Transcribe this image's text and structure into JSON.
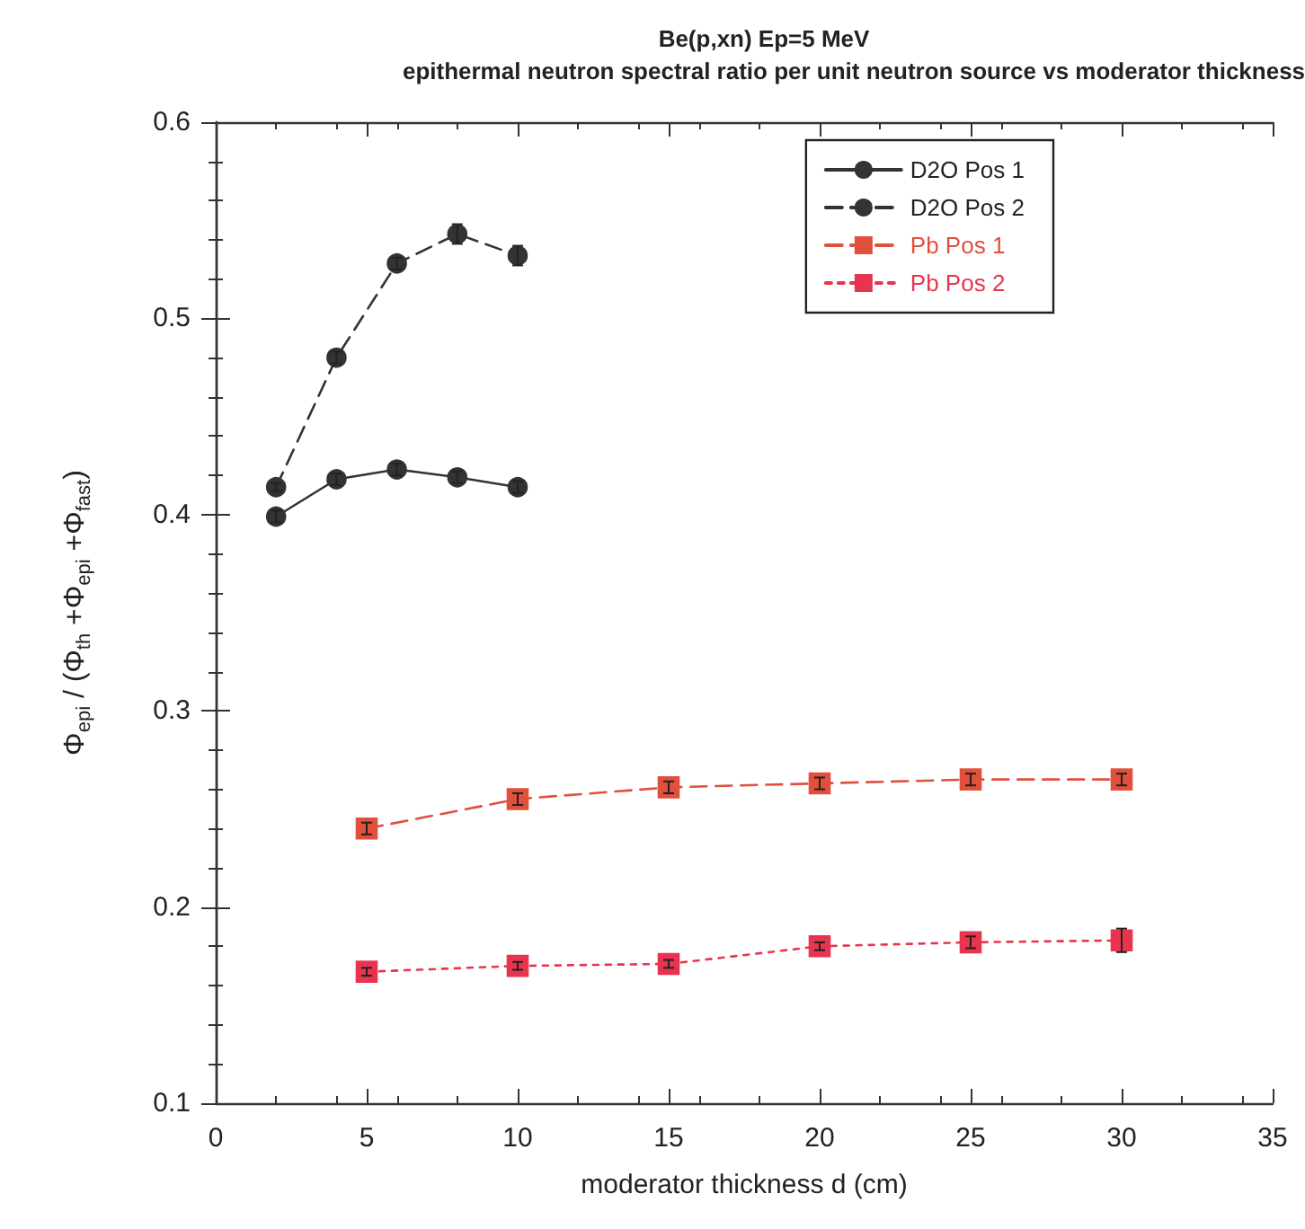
{
  "chart_data": {
    "type": "line",
    "title": "Be(p,xn) Ep=5 MeV",
    "subtitle": "epithermal neutron spectral ratio per unit neutron source vs moderator thickness",
    "xlabel": "moderator thickness d (cm)",
    "ylabel": "Φ$_{epi}$ / (Φ$_{th}$ +Φ$_{epi}$ +Φ$_{fast}$)",
    "xlim": [
      0,
      35
    ],
    "xticks": [
      0,
      5,
      10,
      15,
      20,
      25,
      30,
      35
    ],
    "ylim": [
      0.1,
      0.6
    ],
    "yticks": [
      0.1,
      0.2,
      0.3,
      0.4,
      0.5,
      0.6
    ],
    "grid": false,
    "legend": "top right",
    "series": [
      {
        "name": "D2O Pos 1",
        "color": "#333333",
        "marker": "circle",
        "line_style": "solid",
        "x": [
          2,
          4,
          6,
          8,
          10
        ],
        "values": [
          0.399,
          0.418,
          0.423,
          0.419,
          0.414
        ],
        "errors": [
          0.003,
          0.003,
          0.003,
          0.003,
          0.003
        ]
      },
      {
        "name": "D2O Pos 2",
        "color": "#333333",
        "marker": "circle",
        "line_style": "dashed",
        "x": [
          2,
          4,
          6,
          8,
          10
        ],
        "values": [
          0.414,
          0.48,
          0.528,
          0.543,
          0.532
        ],
        "errors": [
          0.002,
          0.003,
          0.003,
          0.005,
          0.005
        ]
      },
      {
        "name": "Pb Pos 1",
        "color": "#e0503c",
        "marker": "square",
        "line_style": "dashed",
        "x": [
          5,
          10,
          15,
          20,
          25,
          30
        ],
        "values": [
          0.24,
          0.255,
          0.261,
          0.263,
          0.265,
          0.265
        ],
        "errors": [
          0.003,
          0.003,
          0.003,
          0.003,
          0.003,
          0.003
        ]
      },
      {
        "name": "Pb Pos 2",
        "color": "#e8344e",
        "marker": "square",
        "line_style": "dotted",
        "x": [
          5,
          10,
          15,
          20,
          25,
          30
        ],
        "values": [
          0.167,
          0.17,
          0.171,
          0.18,
          0.182,
          0.183
        ],
        "errors": [
          0.002,
          0.002,
          0.002,
          0.002,
          0.003,
          0.006
        ]
      }
    ]
  }
}
